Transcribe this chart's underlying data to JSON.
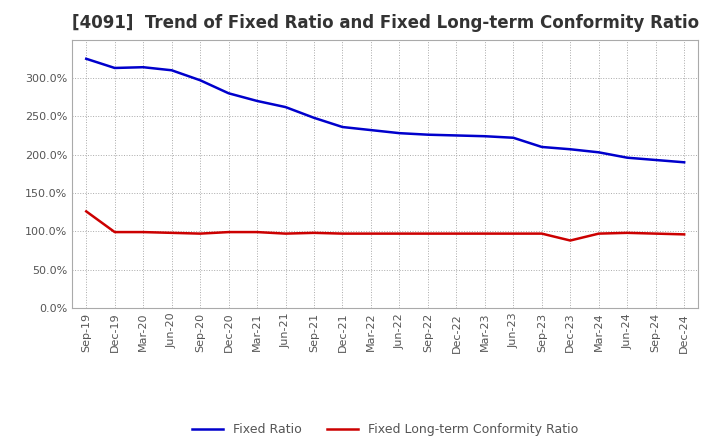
{
  "title": "[4091]  Trend of Fixed Ratio and Fixed Long-term Conformity Ratio",
  "x_labels": [
    "Sep-19",
    "Dec-19",
    "Mar-20",
    "Jun-20",
    "Sep-20",
    "Dec-20",
    "Mar-21",
    "Jun-21",
    "Sep-21",
    "Dec-21",
    "Mar-22",
    "Jun-22",
    "Sep-22",
    "Dec-22",
    "Mar-23",
    "Jun-23",
    "Sep-23",
    "Dec-23",
    "Mar-24",
    "Jun-24",
    "Sep-24",
    "Dec-24"
  ],
  "fixed_ratio": [
    3.25,
    3.13,
    3.14,
    3.1,
    2.97,
    2.8,
    2.7,
    2.62,
    2.48,
    2.36,
    2.32,
    2.28,
    2.26,
    2.25,
    2.24,
    2.22,
    2.1,
    2.07,
    2.03,
    1.96,
    1.93,
    1.9
  ],
  "fixed_lt_conformity": [
    1.26,
    0.99,
    0.99,
    0.98,
    0.97,
    0.99,
    0.99,
    0.97,
    0.98,
    0.97,
    0.97,
    0.97,
    0.97,
    0.97,
    0.97,
    0.97,
    0.97,
    0.88,
    0.97,
    0.98,
    0.97,
    0.96
  ],
  "fixed_ratio_color": "#0000CC",
  "fixed_lt_color": "#CC0000",
  "ylim": [
    0.0,
    3.5
  ],
  "yticks": [
    0.0,
    0.5,
    1.0,
    1.5,
    2.0,
    2.5,
    3.0
  ],
  "background_color": "#FFFFFF",
  "plot_bg_color": "#FFFFFF",
  "grid_color": "#AAAAAA",
  "title_fontsize": 12,
  "tick_fontsize": 8,
  "legend_labels": [
    "Fixed Ratio",
    "Fixed Long-term Conformity Ratio"
  ]
}
